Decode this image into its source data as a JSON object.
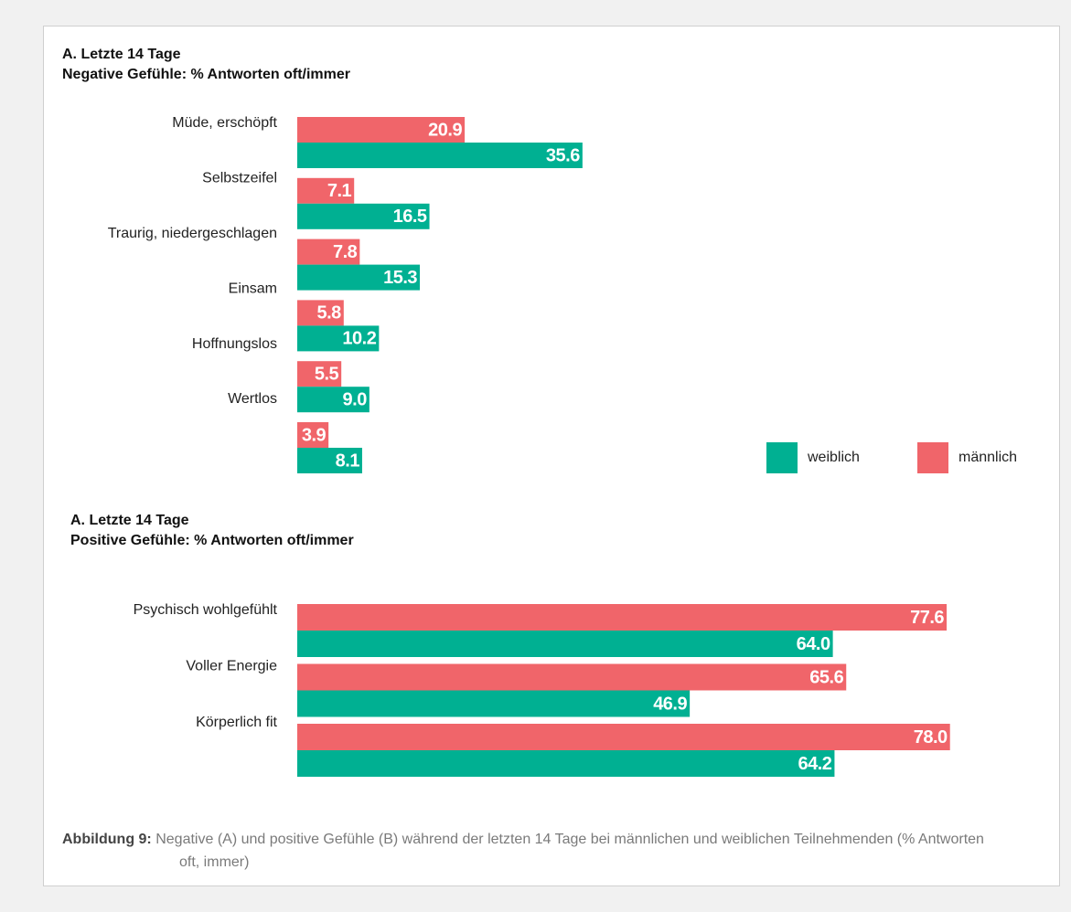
{
  "chart_data": [
    {
      "type": "bar",
      "orientation": "horizontal",
      "title": "A. Letzte 14 Tage",
      "subtitle": "Negative Gefühle: % Antworten oft/immer",
      "categories": [
        "Müde, erschöpft",
        "Selbstzeifel",
        "Traurig, niedergeschlagen",
        "Einsam",
        "Hoffnungslos",
        "Wertlos"
      ],
      "series": [
        {
          "name": "männlich",
          "color": "#f0656a",
          "values": [
            20.9,
            7.1,
            7.8,
            5.8,
            5.5,
            3.9
          ],
          "value_labels": [
            "20.9",
            "7.1",
            "7.8",
            "5.8",
            "5.5",
            "3.9"
          ]
        },
        {
          "name": "weiblich",
          "color": "#00b092",
          "values": [
            35.6,
            16.5,
            15.3,
            10.2,
            9,
            8.1
          ],
          "value_labels": [
            "35.6",
            "16.5",
            "15.3",
            "10.2",
            "9.0",
            "8.1"
          ]
        }
      ],
      "legend": "lower right"
    },
    {
      "type": "bar",
      "orientation": "horizontal",
      "title": "A. Letzte 14 Tage",
      "subtitle": "Positive Gefühle: % Antworten oft/immer",
      "categories": [
        "Psychisch wohlgefühlt",
        "Voller Energie",
        "Körperlich fit"
      ],
      "series": [
        {
          "name": "männlich",
          "color": "#f0656a",
          "values": [
            77.6,
            65.6,
            78
          ],
          "value_labels": [
            "77.6",
            "65.6",
            "78.0"
          ]
        },
        {
          "name": "weiblich",
          "color": "#00b092",
          "values": [
            64,
            46.9,
            64.2
          ],
          "value_labels": [
            "64.0",
            "46.9",
            "64.2"
          ]
        }
      ]
    }
  ],
  "caption": {
    "label": "Abbildung 9:",
    "text": "Negative (A) und positive Gefühle (B) während der letzten 14 Tage bei männlichen und weiblichen Teilnehmenden (% Antworten oft, immer)"
  }
}
